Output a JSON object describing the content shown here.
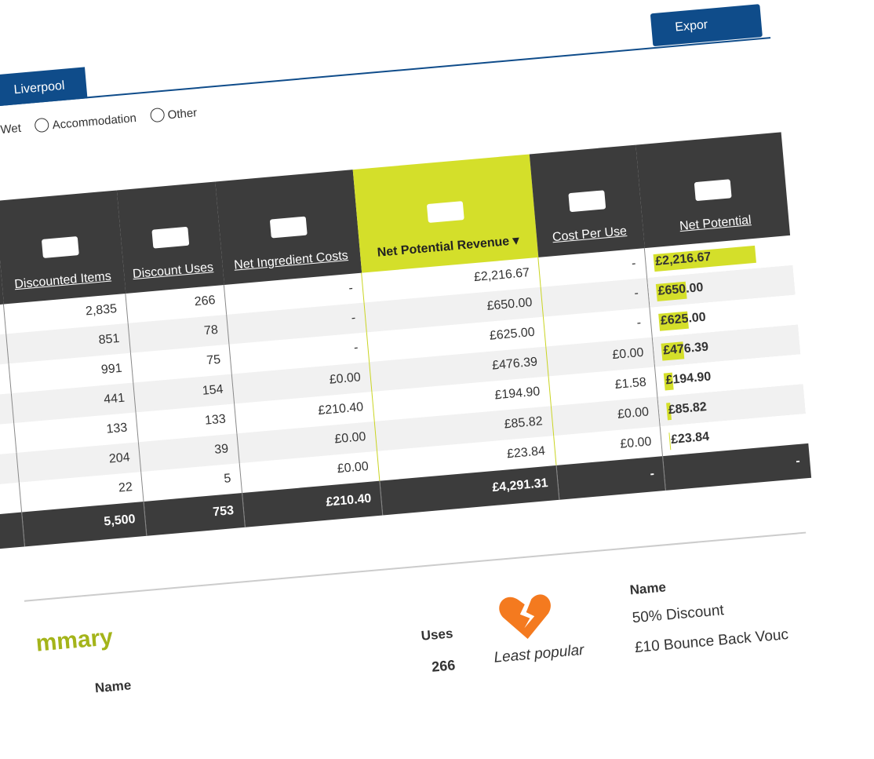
{
  "tab": "Liverpool",
  "export_button": "Expor",
  "filters": [
    "Wet",
    "Accommodation",
    "Other"
  ],
  "table": {
    "headers": [
      "Discounted Items",
      "Discount Uses",
      "Net Ingredient Costs",
      "Net Potential Revenue ▾",
      "Cost Per Use",
      "Net Potential"
    ],
    "rows": [
      [
        "2,835",
        "266",
        "-",
        "£2,216.67",
        "-"
      ],
      [
        "851",
        "78",
        "-",
        "£650.00",
        "-"
      ],
      [
        "991",
        "75",
        "-",
        "£625.00",
        "-"
      ],
      [
        "441",
        "154",
        "£0.00",
        "£476.39",
        "£0.00"
      ],
      [
        "133",
        "133",
        "£210.40",
        "£194.90",
        "£1.58"
      ],
      [
        "204",
        "39",
        "£0.00",
        "£85.82",
        "£0.00"
      ],
      [
        "22",
        "5",
        "£0.00",
        "£23.84",
        "£0.00"
      ]
    ],
    "bars": [
      {
        "value": 2216.67,
        "label": "£2,216.67"
      },
      {
        "value": 650.0,
        "label": "£650.00"
      },
      {
        "value": 625.0,
        "label": "£625.00"
      },
      {
        "value": 476.39,
        "label": "£476.39"
      },
      {
        "value": 194.9,
        "label": "£194.90"
      },
      {
        "value": 85.82,
        "label": "£85.82"
      },
      {
        "value": 23.84,
        "label": "£23.84"
      }
    ],
    "totals": [
      "5,500",
      "753",
      "£210.40",
      "£4,291.31",
      "-",
      "-"
    ]
  },
  "summary": {
    "title": "mmary",
    "name_header": "Name",
    "uses_header": "Uses",
    "uses_value": "266",
    "least_popular": "Least popular",
    "list_header": "Name",
    "list": [
      "50% Discount",
      "£10 Bounce Back Vouc"
    ]
  }
}
